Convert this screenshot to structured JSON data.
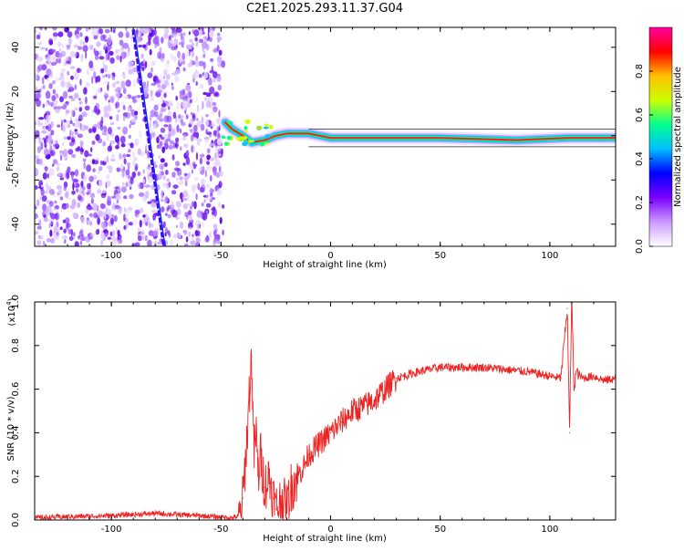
{
  "title": "C2E1.2025.293.11.37.G04",
  "chart_data": [
    {
      "type": "heatmap",
      "xlabel": "Height of straight line (km)",
      "ylabel": "Frequency (Hz)",
      "xlim": [
        -135,
        130
      ],
      "ylim": [
        -50,
        49
      ],
      "xticks": [
        -100,
        -50,
        0,
        50,
        100
      ],
      "yticks": [
        -40,
        -20,
        0,
        20,
        40
      ],
      "colorbar": {
        "label": "Normalized spectral amplitude",
        "range": [
          0,
          1
        ],
        "ticks": [
          "0.0",
          "0.2",
          "0.4",
          "0.6",
          "0.8"
        ],
        "colors": [
          "#ffffff",
          "#cc99ff",
          "#7a00ff",
          "#0000ff",
          "#00bfff",
          "#00ff90",
          "#ccff00",
          "#ffc000",
          "#ff0000",
          "#ff00a0"
        ]
      },
      "features": {
        "noise_region_x": [
          -135,
          -49
        ],
        "diagonal_streak": {
          "x_start": -90,
          "y_start": 48,
          "x_end": -76,
          "y_end": -50
        },
        "ridge": [
          {
            "x": -48,
            "y": 6
          },
          {
            "x": -45,
            "y": 3
          },
          {
            "x": -40,
            "y": 0
          },
          {
            "x": -36,
            "y": -3
          },
          {
            "x": -30,
            "y": -2
          },
          {
            "x": -25,
            "y": 0
          },
          {
            "x": -20,
            "y": 1
          },
          {
            "x": -10,
            "y": 1
          },
          {
            "x": 0,
            "y": -1
          },
          {
            "x": 20,
            "y": -1
          },
          {
            "x": 50,
            "y": -1
          },
          {
            "x": 85,
            "y": -2
          },
          {
            "x": 108,
            "y": -1
          },
          {
            "x": 130,
            "y": -1
          }
        ]
      }
    },
    {
      "type": "line",
      "xlabel": "Height of straight line (km)",
      "ylabel": "SNR (10 * v/v)",
      "yscale_label": "(x10",
      "yscale_exp": "4",
      "yscale_close": ")",
      "xlim": [
        -135,
        130
      ],
      "ylim": [
        0,
        1.0
      ],
      "xticks": [
        -100,
        -50,
        0,
        50,
        100
      ],
      "yticks": [
        0.0,
        0.2,
        0.4,
        0.6,
        0.8,
        1.0
      ],
      "line_color": "#ee2222",
      "series": [
        {
          "name": "SNR",
          "x": [
            -135,
            -120,
            -100,
            -80,
            -60,
            -45,
            -41,
            -40,
            -38,
            -37,
            -36,
            -35,
            -34,
            -33,
            -32,
            -30,
            -28,
            -26,
            -25,
            -22,
            -20,
            -18,
            -15,
            -12,
            -10,
            -5,
            0,
            5,
            10,
            15,
            20,
            25,
            30,
            40,
            50,
            60,
            70,
            80,
            90,
            100,
            105,
            108,
            109,
            110,
            111,
            112,
            115,
            120,
            125,
            130
          ],
          "y": [
            0.01,
            0.015,
            0.02,
            0.03,
            0.02,
            0.01,
            0.02,
            0.1,
            0.4,
            0.6,
            0.75,
            0.3,
            0.4,
            0.2,
            0.3,
            0.15,
            0.2,
            0.1,
            0.05,
            0.1,
            0.05,
            0.15,
            0.2,
            0.25,
            0.3,
            0.35,
            0.4,
            0.45,
            0.5,
            0.52,
            0.55,
            0.6,
            0.65,
            0.68,
            0.7,
            0.7,
            0.7,
            0.69,
            0.68,
            0.66,
            0.65,
            0.97,
            0.4,
            1.03,
            0.6,
            0.68,
            0.65,
            0.66,
            0.64,
            0.65
          ]
        }
      ]
    }
  ]
}
